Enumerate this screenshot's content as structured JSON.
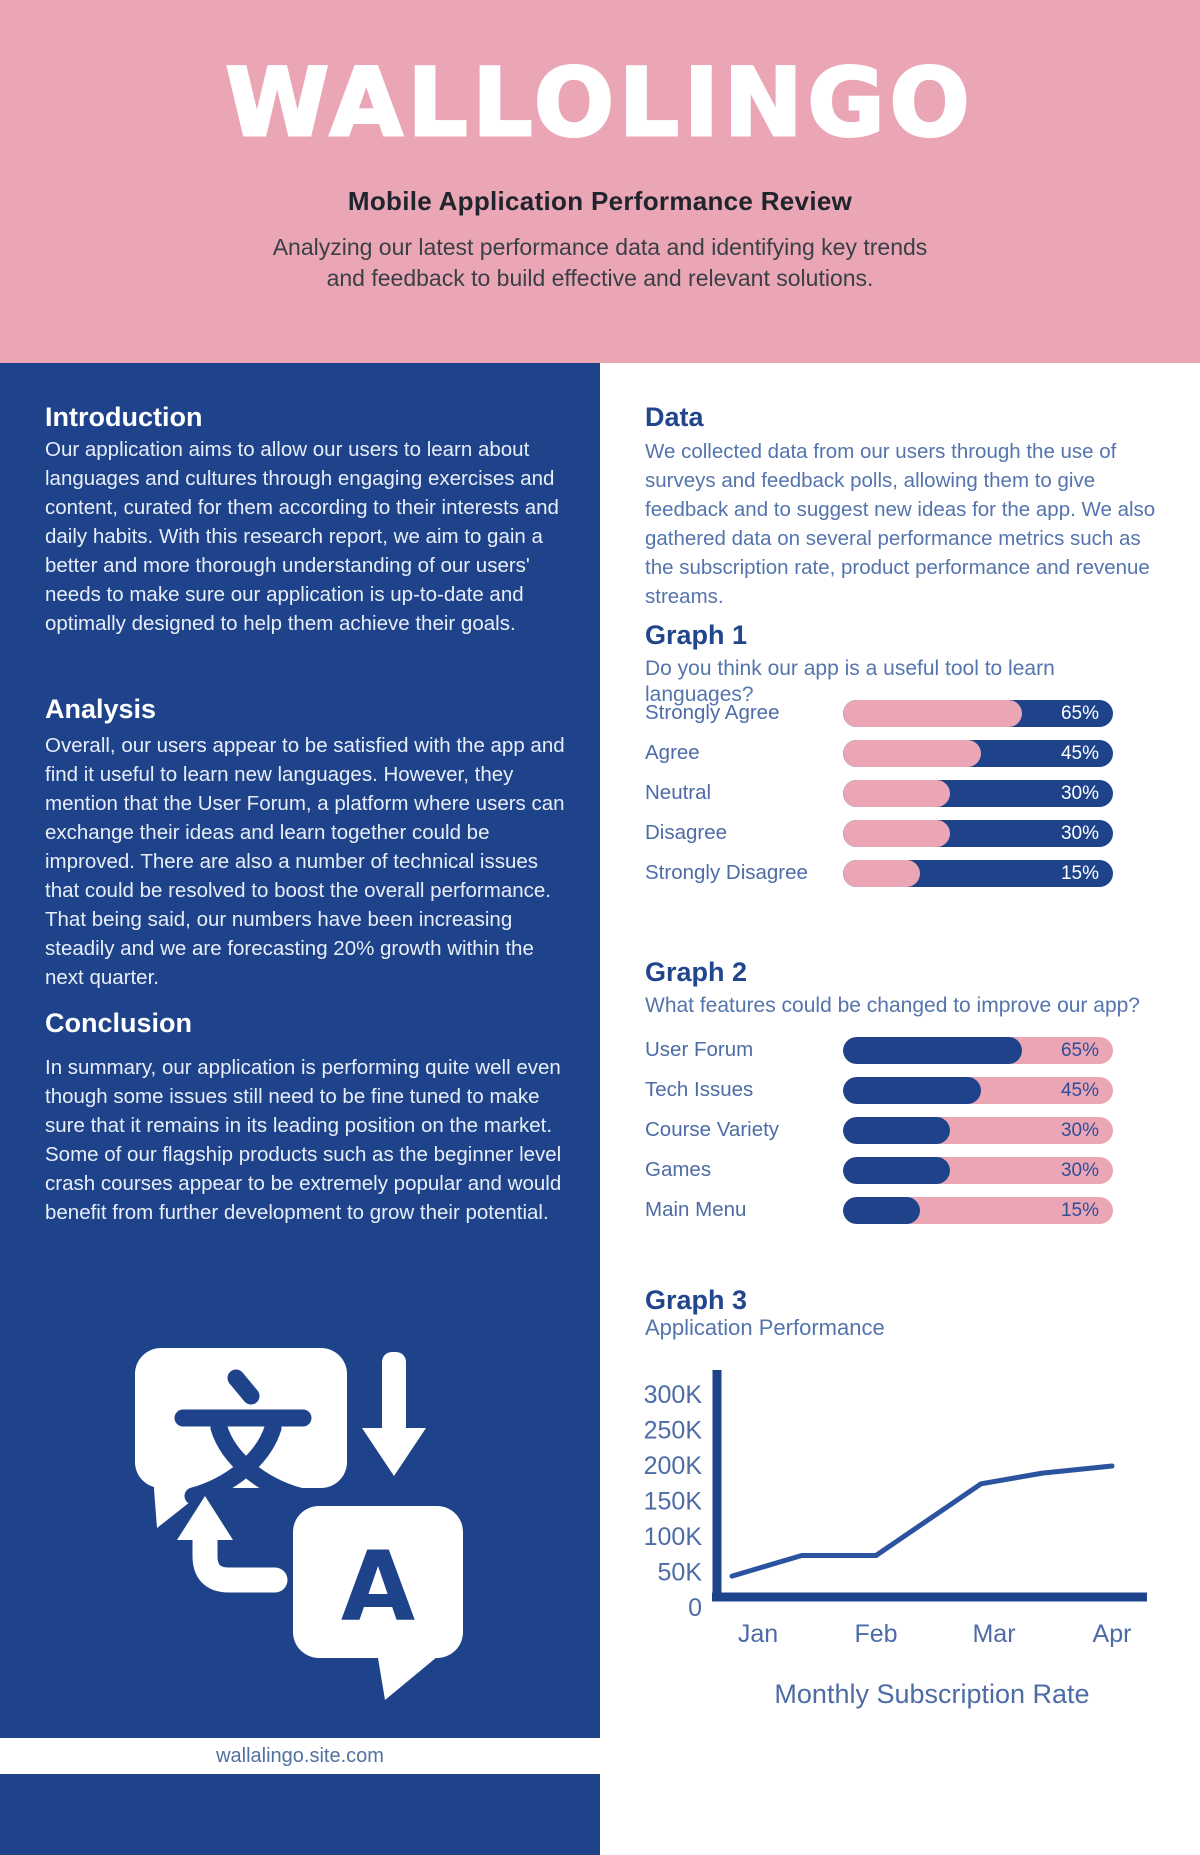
{
  "colors": {
    "pink": "#eaa6b5",
    "navy": "#1e438b",
    "heading_blue": "#21468c",
    "body_blue": "#5474ad",
    "label_blue": "#4d6ca6",
    "left_text": "#e8eef8",
    "pct_on_navy_track": "#ffffff",
    "pct_on_pink_track": "#2c4e96"
  },
  "header": {
    "title": "WALLOLINGO",
    "subtitle": "Mobile Application Performance Review",
    "description_line1": "Analyzing our latest performance data and identifying key trends",
    "description_line2": "and feedback to build effective and relevant solutions."
  },
  "left": {
    "intro": {
      "heading": "Introduction",
      "body": "Our application aims to allow our users to learn about languages and cultures through engaging exercises and content, curated for them according to their interests and daily habits. With this research report, we aim to gain a better and more thorough understanding of our users' needs to make sure our application is up-to-date and optimally designed to help them achieve their goals."
    },
    "analysis": {
      "heading": "Analysis",
      "body": "Overall, our users appear to be satisfied with the app and find it useful to learn new languages. However, they mention that the User Forum, a platform where users can exchange their ideas and learn together could be improved. There are also a number of technical issues that could be resolved to boost the overall performance. That being said, our numbers have been increasing steadily and we are forecasting 20% growth within the next quarter."
    },
    "conclusion": {
      "heading": "Conclusion",
      "body": "In summary, our application is performing quite well even though some issues still need to be fine tuned to make sure that it remains in its leading position on the market. Some of our flagship products such as the beginner level crash courses appear to be extremely popular and would benefit from further development to grow their potential."
    },
    "icon": "translate-icon",
    "footer_url": "wallalingo.site.com"
  },
  "right": {
    "data": {
      "heading": "Data",
      "body": "We collected data from our users through the use of surveys and feedback polls, allowing them to give feedback and to suggest new ideas for the app. We also gathered data on several performance metrics such as the subscription rate, product performance and revenue streams."
    }
  },
  "chart_data": [
    {
      "id": "graph1",
      "type": "bar",
      "title": "Graph 1",
      "question": "Do you think our app is a useful tool to learn languages?",
      "categories": [
        "Strongly Agree",
        "Agree",
        "Neutral",
        "Disagree",
        "Strongly Disagree"
      ],
      "values": [
        65,
        45,
        30,
        30,
        15
      ],
      "value_labels": [
        "65%",
        "45%",
        "30%",
        "30%",
        "15%"
      ],
      "unit": "%",
      "style": "pink-fill-on-navy-track"
    },
    {
      "id": "graph2",
      "type": "bar",
      "title": "Graph 2",
      "question": "What features could be changed to improve our app?",
      "categories": [
        "User Forum",
        "Tech Issues",
        "Course Variety",
        "Games",
        "Main Menu"
      ],
      "values": [
        65,
        45,
        30,
        30,
        15
      ],
      "value_labels": [
        "65%",
        "45%",
        "30%",
        "30%",
        "15%"
      ],
      "unit": "%",
      "style": "navy-fill-on-pink-track"
    },
    {
      "id": "graph3",
      "type": "line",
      "title": "Graph 3",
      "subtitle": "Application Performance",
      "caption": "Monthly Subscription Rate",
      "x": [
        "Jan",
        "Feb",
        "Mar",
        "Apr"
      ],
      "values_k": [
        50,
        75,
        170,
        200
      ],
      "y_ticks": [
        "300K",
        "250K",
        "200K",
        "150K",
        "100K",
        "50K",
        "0"
      ],
      "ylim_k": [
        0,
        300
      ],
      "grid": false,
      "line_profile": [
        {
          "m": 0.78,
          "k": 45
        },
        {
          "m": 1.37,
          "k": 74
        },
        {
          "m": 2.0,
          "k": 74
        },
        {
          "m": 2.89,
          "k": 175
        },
        {
          "m": 3.41,
          "k": 190
        },
        {
          "m": 4.0,
          "k": 200
        }
      ]
    }
  ]
}
